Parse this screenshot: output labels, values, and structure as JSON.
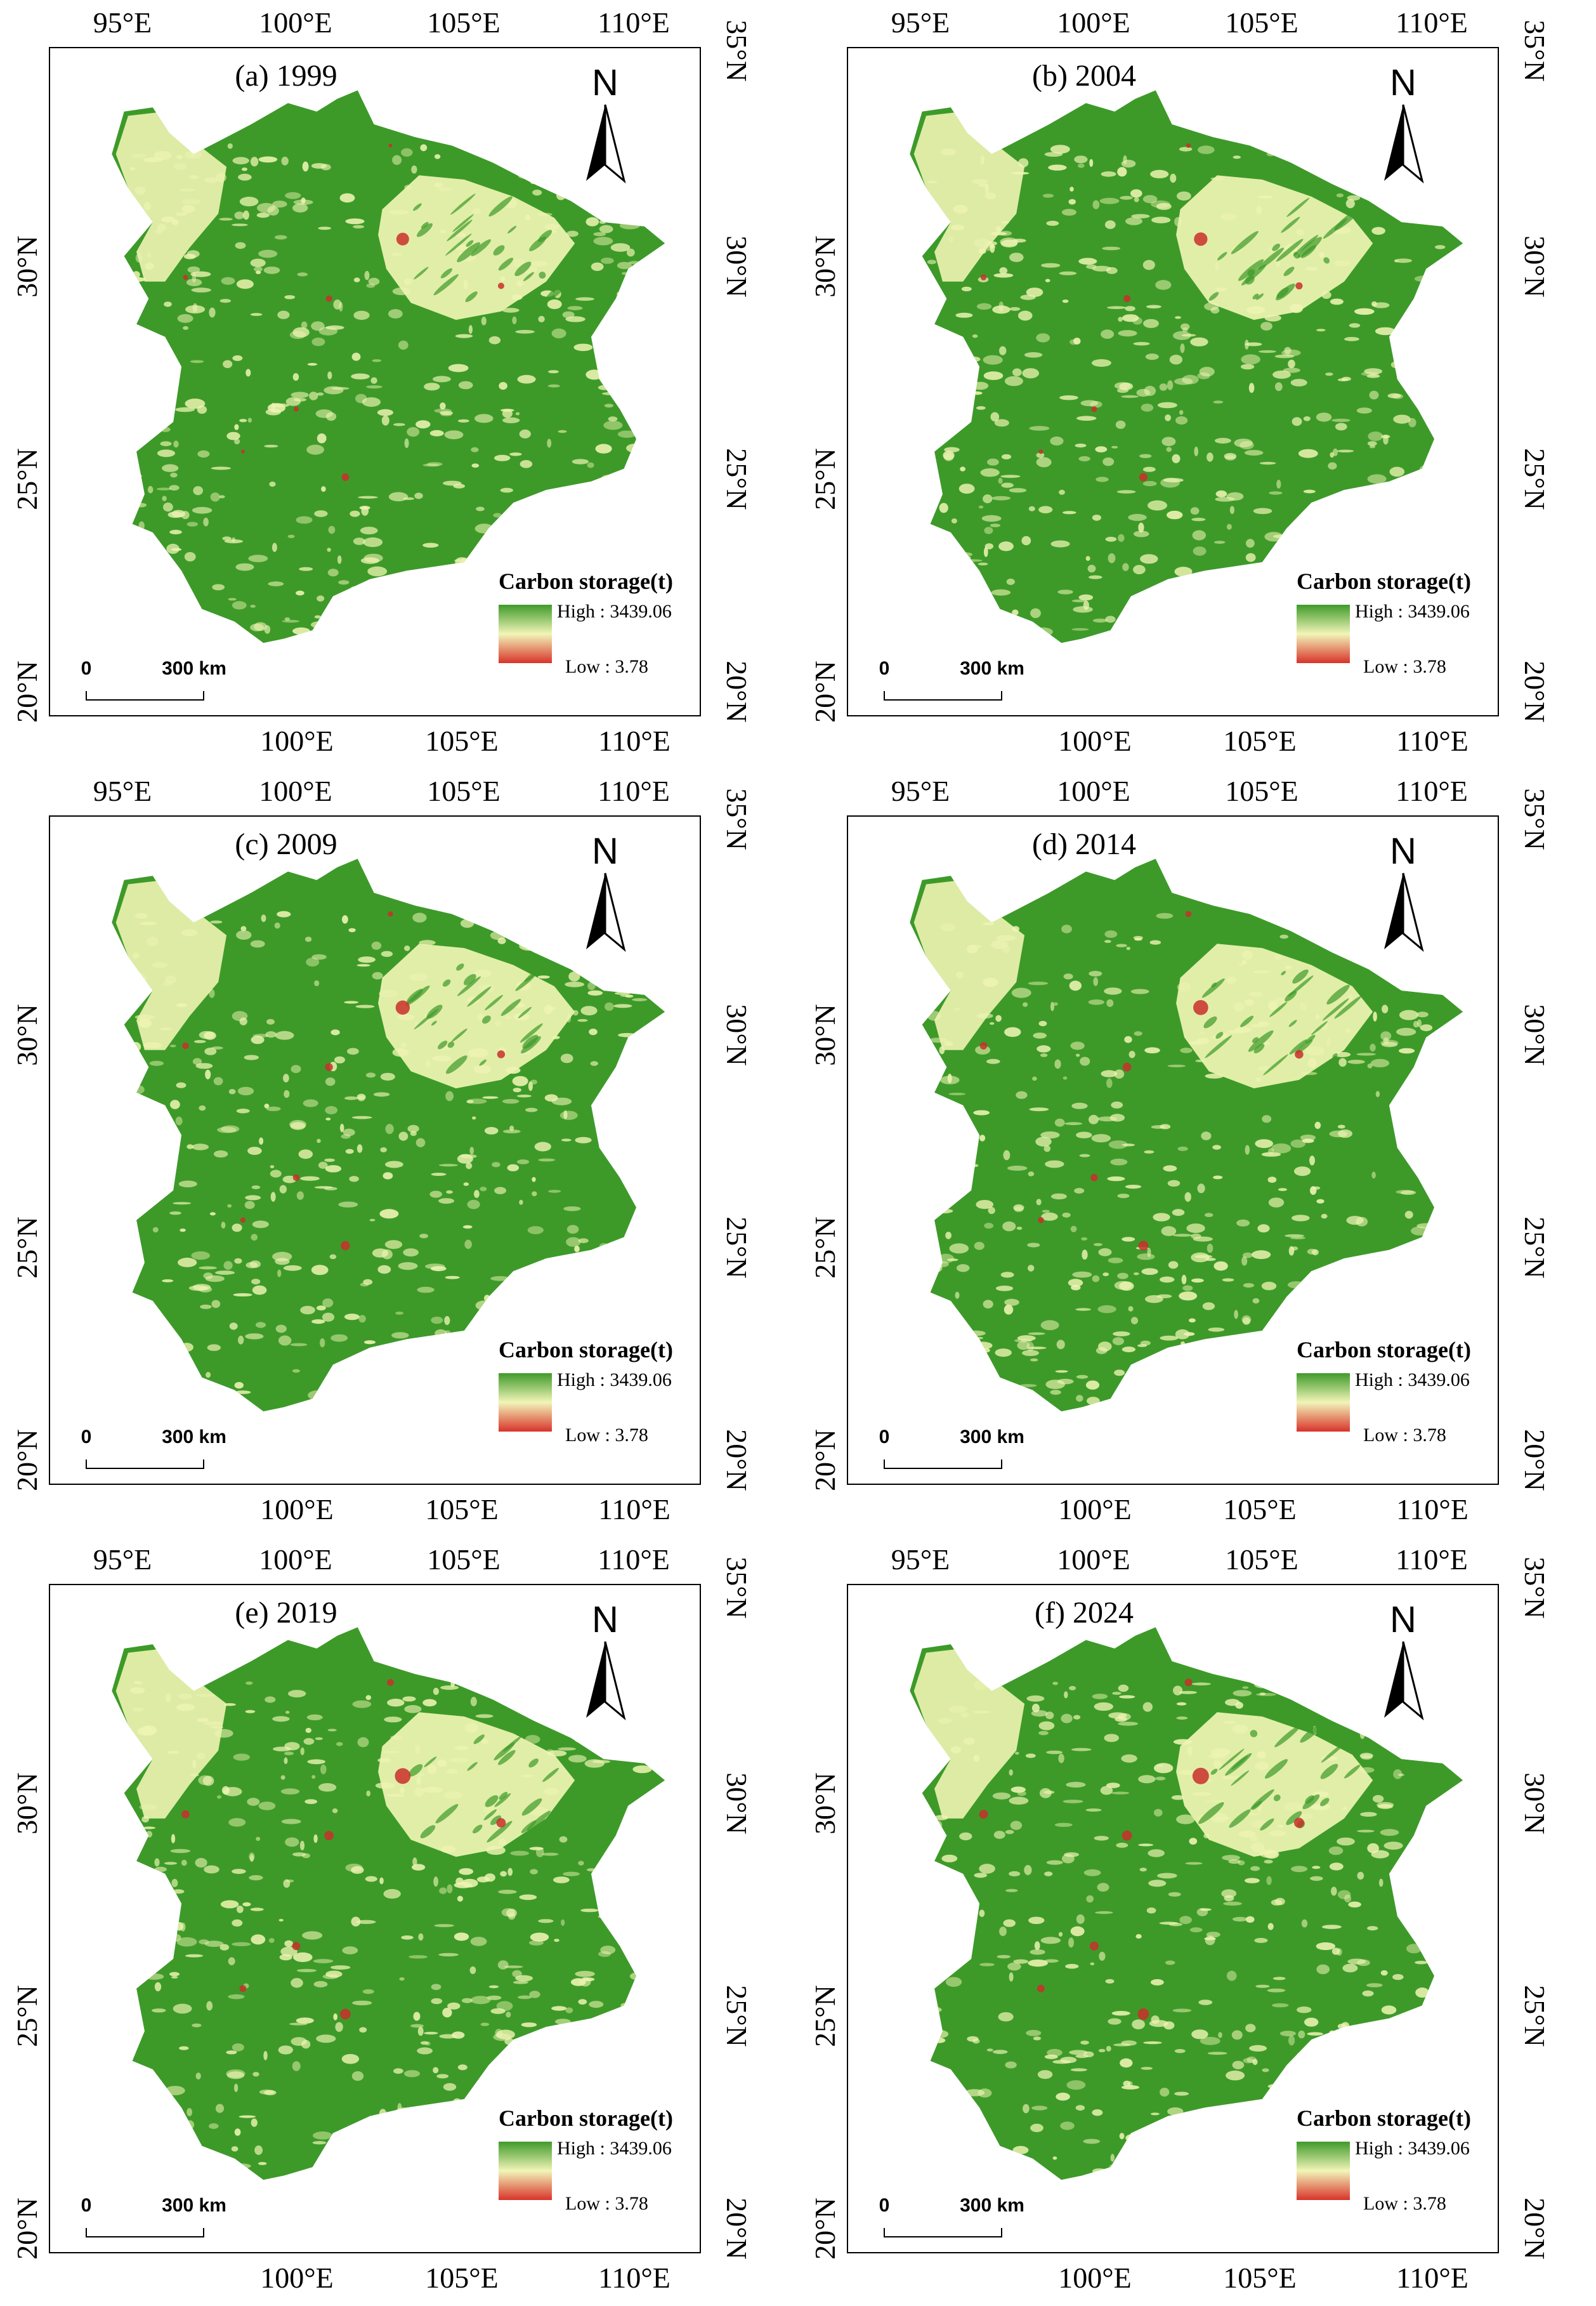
{
  "panels": [
    {
      "title": "(a) 1999"
    },
    {
      "title": "(b) 2004"
    },
    {
      "title": "(c) 2009"
    },
    {
      "title": "(d) 2014"
    },
    {
      "title": "(e) 2019"
    },
    {
      "title": "(f) 2024"
    }
  ],
  "axes": {
    "top_labels": [
      "95°E",
      "100°E",
      "105°E",
      "110°E"
    ],
    "bottom_labels": [
      "100°E",
      "105°E",
      "110°E"
    ],
    "left_labels": [
      "30°N",
      "25°N",
      "20°N"
    ],
    "right_labels": [
      "35°N",
      "30°N",
      "25°N",
      "20°N"
    ]
  },
  "north_arrow": {
    "label": "N",
    "icon": "north-arrow-icon"
  },
  "scale_bar": {
    "start_label": "0",
    "end_label": "300 km"
  },
  "legend": {
    "title": "Carbon storage(t)",
    "high_label": "High : 3439.06",
    "low_label": "Low : 3.78",
    "colors": {
      "high": "#3f9a2a",
      "mid": "#f2f5b8",
      "low": "#d8332a"
    }
  },
  "map_colors": {
    "forest": "#3d9a29",
    "light": "#eef4b2",
    "urban": "#c92f2a"
  }
}
